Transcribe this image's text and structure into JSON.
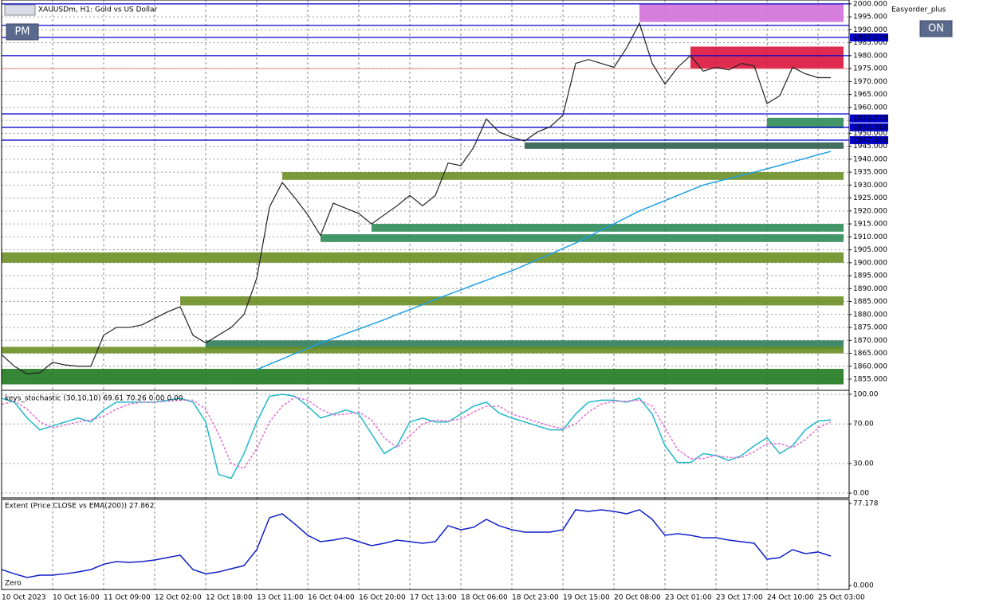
{
  "chart_data": [
    {
      "type": "line",
      "title": "XAUUSDm, H1:  Gold vs US Dollar",
      "indicator": "Easyorder_plus",
      "buttons": [
        "PM",
        "ON"
      ],
      "categories": [
        "10 Oct 2023",
        null,
        null,
        null,
        "10 Oct 16:00",
        null,
        null,
        null,
        "11 Oct 09:00",
        null,
        null,
        null,
        "12 Oct 02:00",
        null,
        null,
        null,
        "12 Oct 18:00",
        null,
        null,
        null,
        "13 Oct 11:00",
        null,
        null,
        null,
        "16 Oct 04:00",
        null,
        null,
        null,
        "16 Oct 20:00",
        null,
        null,
        null,
        "17 Oct 13:00",
        null,
        null,
        null,
        "18 Oct 06:00",
        null,
        null,
        null,
        "18 Oct 23:00",
        null,
        null,
        null,
        "19 Oct 15:00",
        null,
        null,
        null,
        "20 Oct 08:00",
        null,
        null,
        null,
        "23 Oct 01:00",
        null,
        null,
        null,
        "23 Oct 17:00",
        null,
        null,
        null,
        "24 Oct 10:00",
        null,
        null,
        null,
        "25 Oct 03:00",
        null
      ],
      "series": [
        {
          "color": "#222222",
          "values": [
            1864.5,
            1860,
            1857,
            1857.5,
            1861.5,
            1860.5,
            1860,
            1860,
            1872,
            1875,
            1875,
            1876,
            1878.5,
            1881,
            1883,
            1872,
            1869,
            1872,
            1875,
            1880,
            1894,
            1921.5,
            1931,
            1925,
            1918.5,
            1910.5,
            1923,
            1921,
            1919,
            1915,
            1918.5,
            1922,
            1926,
            1922,
            1926,
            1938.5,
            1937.5,
            1944.5,
            1955.5,
            1950.5,
            1948.5,
            1947,
            1950.5,
            1952.5,
            1957,
            1977,
            1978.5,
            1977,
            1975.5,
            1983,
            1992.5,
            1977,
            1969,
            1975.5,
            1980,
            1974,
            1975.5,
            1974.5,
            1977,
            1976,
            1961.5,
            1964.5,
            1975.5,
            1973,
            1971.5,
            1971.5
          ]
        },
        {
          "color": "#1ea0e6",
          "values": [
            null,
            null,
            null,
            null,
            null,
            null,
            null,
            null,
            null,
            null,
            null,
            null,
            null,
            null,
            null,
            null,
            null,
            null,
            null,
            null,
            1858.7,
            1860.8,
            1862.8,
            1864.9,
            1866.9,
            1869,
            1870.8,
            1872.6,
            1874.4,
            1876.2,
            1878,
            1880,
            1881.9,
            1883.8,
            1885.8,
            1887.7,
            1889.5,
            1891.4,
            1893.2,
            1895.1,
            1896.9,
            1899,
            1901.2,
            1903.3,
            1905.5,
            1907.6,
            1910.1,
            1912.6,
            1915,
            1917.5,
            1920,
            1922,
            1924,
            1926,
            1928,
            1930,
            1931.3,
            1932.5,
            1933.8,
            1935,
            1936.3,
            1937.6,
            1939,
            1940.3,
            1941.7,
            1943
          ]
        }
      ],
      "zones": [
        {
          "start": 50,
          "range": [
            1993,
            2000
          ],
          "color": "#d070d8"
        },
        {
          "start": 54,
          "range": [
            1975,
            1983.5
          ],
          "color": "#dc143c"
        },
        {
          "start": 60,
          "range": [
            1952,
            1956
          ],
          "color": "#2e8b57"
        },
        {
          "start": 41,
          "range": [
            1944,
            1946.5
          ],
          "color": "#2f5f4f"
        },
        {
          "start": 22,
          "range": [
            1932,
            1935
          ],
          "color": "#6b8e23"
        },
        {
          "start": 29,
          "range": [
            1912,
            1915
          ],
          "color": "#2e8b57"
        },
        {
          "start": 25,
          "range": [
            1908,
            1911
          ],
          "color": "#2e8b57"
        },
        {
          "start": 0,
          "range": [
            1900,
            1904
          ],
          "color": "#6b8e23"
        },
        {
          "start": 14,
          "range": [
            1883.5,
            1887
          ],
          "color": "#6b8e23"
        },
        {
          "start": 16,
          "range": [
            1866.5,
            1870
          ],
          "color": "#2e7d5b"
        },
        {
          "start": 0,
          "range": [
            1865,
            1867.5
          ],
          "color": "#6b8e23"
        },
        {
          "start": 0,
          "range": [
            1853,
            1859
          ],
          "color": "#1f7a1f"
        }
      ],
      "levels": [
        2000,
        1991.7,
        1987.034,
        1980,
        1957.5,
        1952.316,
        1947.356
      ],
      "level_color": "#0000cd",
      "bid": 1975,
      "bid_color": "#e88080",
      "level_tags": [
        1987.034,
        1955.735,
        1952.316,
        1947.356
      ],
      "ylim": [
        1850.7,
        2001.5
      ],
      "grid": true,
      "yticks": [
        {
          "value": 2000,
          "label": "2000.000"
        },
        {
          "value": 1995,
          "label": "1995.000"
        },
        {
          "value": 1990,
          "label": "1990.000"
        },
        {
          "value": 1985,
          "label": "1985.000"
        },
        {
          "value": 1980,
          "label": "1980.000"
        },
        {
          "value": 1975,
          "label": "1975.000"
        },
        {
          "value": 1970,
          "label": "1970.000"
        },
        {
          "value": 1965,
          "label": "1965.000"
        },
        {
          "value": 1960,
          "label": "1960.000"
        },
        {
          "value": 1955,
          "label": "1955.000"
        },
        {
          "value": 1950,
          "label": "1950.000"
        },
        {
          "value": 1945,
          "label": "1945.000"
        },
        {
          "value": 1940,
          "label": "1940.000"
        },
        {
          "value": 1935,
          "label": "1935.000"
        },
        {
          "value": 1930,
          "label": "1930.000"
        },
        {
          "value": 1925,
          "label": "1925.000"
        },
        {
          "value": 1920,
          "label": "1920.000"
        },
        {
          "value": 1915,
          "label": "1915.000"
        },
        {
          "value": 1910,
          "label": "1910.000"
        },
        {
          "value": 1905,
          "label": "1905.000"
        },
        {
          "value": 1900,
          "label": "1900.000"
        },
        {
          "value": 1895,
          "label": "1895.000"
        },
        {
          "value": 1890,
          "label": "1890.000"
        },
        {
          "value": 1885,
          "label": "1885.000"
        },
        {
          "value": 1880,
          "label": "1880.000"
        },
        {
          "value": 1875,
          "label": "1875.000"
        },
        {
          "value": 1870,
          "label": "1870.000"
        },
        {
          "value": 1865,
          "label": "1865.000"
        },
        {
          "value": 1860,
          "label": "1860.000"
        },
        {
          "value": 1855,
          "label": "1855.000"
        }
      ]
    },
    {
      "type": "line",
      "title": "keys_stochastic (30,10,10) 69.61 70.26 0.00 0.00",
      "series": [
        {
          "color": "#20b8c8",
          "values": [
            96,
            92,
            76,
            64,
            68,
            72,
            76,
            72,
            84,
            92,
            92,
            92,
            92,
            94,
            96,
            92,
            72,
            19,
            15,
            40,
            72,
            98,
            100,
            98,
            88,
            76,
            80,
            84,
            80,
            60,
            40,
            48,
            72,
            76,
            72,
            72,
            80,
            88,
            92,
            81,
            76,
            72,
            68,
            64,
            64,
            80,
            92,
            94,
            94,
            92,
            96,
            80,
            48,
            31,
            31,
            40,
            38,
            33,
            38,
            48,
            56,
            40,
            48,
            64,
            73,
            74
          ]
        },
        {
          "color": "#e070d0",
          "dashed": true,
          "values": [
            90,
            93,
            85,
            72,
            66,
            69,
            72,
            74,
            78,
            85,
            90,
            92,
            92,
            93,
            94,
            94,
            85,
            60,
            30,
            25,
            45,
            72,
            88,
            97,
            94,
            85,
            79,
            80,
            82,
            74,
            56,
            46,
            58,
            70,
            74,
            73,
            75,
            82,
            88,
            88,
            80,
            76,
            72,
            68,
            65,
            70,
            82,
            90,
            93,
            93,
            94,
            88,
            66,
            44,
            35,
            35,
            38,
            36,
            36,
            42,
            50,
            50,
            46,
            54,
            66,
            72
          ]
        }
      ],
      "ylim": [
        -4.8,
        104
      ],
      "grid": true,
      "yticks": [
        {
          "value": 100,
          "label": "100.00"
        },
        {
          "value": 70,
          "label": "70.00"
        },
        {
          "value": 30,
          "label": "30.00"
        },
        {
          "value": 0,
          "label": "0.00"
        }
      ]
    },
    {
      "type": "line",
      "title": "Extent (Price CLOSE vs EMA(200)) 27.862",
      "zero_label": "Zero",
      "series": [
        {
          "color": "#1020c8",
          "values": [
            15,
            11,
            7.5,
            9.7,
            9.7,
            11,
            12.7,
            15,
            20,
            22.5,
            21.7,
            22.5,
            24,
            26.2,
            28.5,
            15,
            11,
            12.7,
            15.7,
            18.7,
            33.7,
            63.7,
            67.4,
            57.7,
            47.2,
            41.2,
            42.7,
            44.9,
            41.2,
            37.5,
            39.7,
            42.7,
            41.2,
            39.7,
            41.2,
            56.2,
            52.4,
            54.7,
            62.2,
            56.2,
            52.4,
            50.2,
            50.2,
            50.2,
            52.4,
            71.2,
            69.7,
            71.2,
            69.7,
            67.4,
            71.2,
            62.2,
            47.2,
            48.7,
            47.2,
            44.9,
            44.9,
            42.7,
            41.2,
            39.7,
            24.7,
            26.2,
            33.7,
            30,
            31.5,
            27.7
          ]
        }
      ],
      "ylim": [
        -3.75,
        80.9
      ],
      "grid": false,
      "yticks": [
        77.178,
        {
          "value": 0,
          "label": "0.000"
        }
      ]
    }
  ]
}
